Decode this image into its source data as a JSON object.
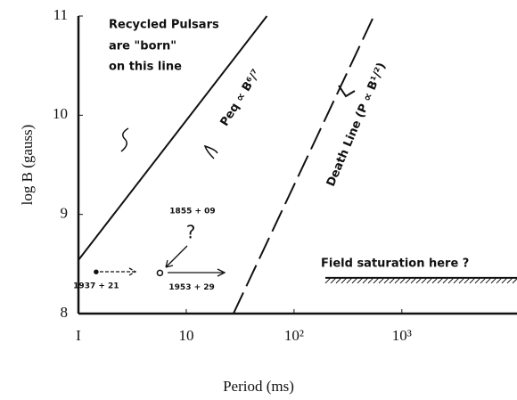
{
  "chart_data": {
    "type": "line",
    "x_label": "Period (ms)",
    "y_label": "log B (gauss)",
    "xlog": true,
    "xlim": [
      1,
      11700
    ],
    "ylim": [
      8,
      11
    ],
    "xticks": [
      {
        "value": 1,
        "label": "I"
      },
      10,
      {
        "value": 100,
        "label": "10²"
      },
      {
        "value": 1000,
        "label": "10³"
      }
    ],
    "yticks": [
      8,
      9,
      10,
      11
    ],
    "series": [
      {
        "color": "#111",
        "dash": false,
        "x": [
          1,
          56
        ],
        "values": [
          8.54,
          11
        ]
      },
      {
        "color": "#111",
        "dash": true,
        "x": [
          27.4,
          550
        ],
        "values": [
          8,
          11
        ]
      },
      {
        "color": "#111",
        "dash": false,
        "x": [
          195,
          11700
        ],
        "values": [
          8.36,
          8.36
        ]
      }
    ],
    "points": [
      {
        "label": "1937 + 21",
        "x": 1.46,
        "y": 8.42
      },
      {
        "label": "1953 + 29",
        "x": 5.7,
        "y": 8.41
      }
    ],
    "annotations": [
      "Recycled Pulsars",
      "are \"born\"",
      "on this line",
      "Peq ∝ B⁶/⁷",
      "Death Line (P ∝ B¹/²)",
      "Field saturation here ?",
      "1855 + 09",
      "?"
    ]
  }
}
